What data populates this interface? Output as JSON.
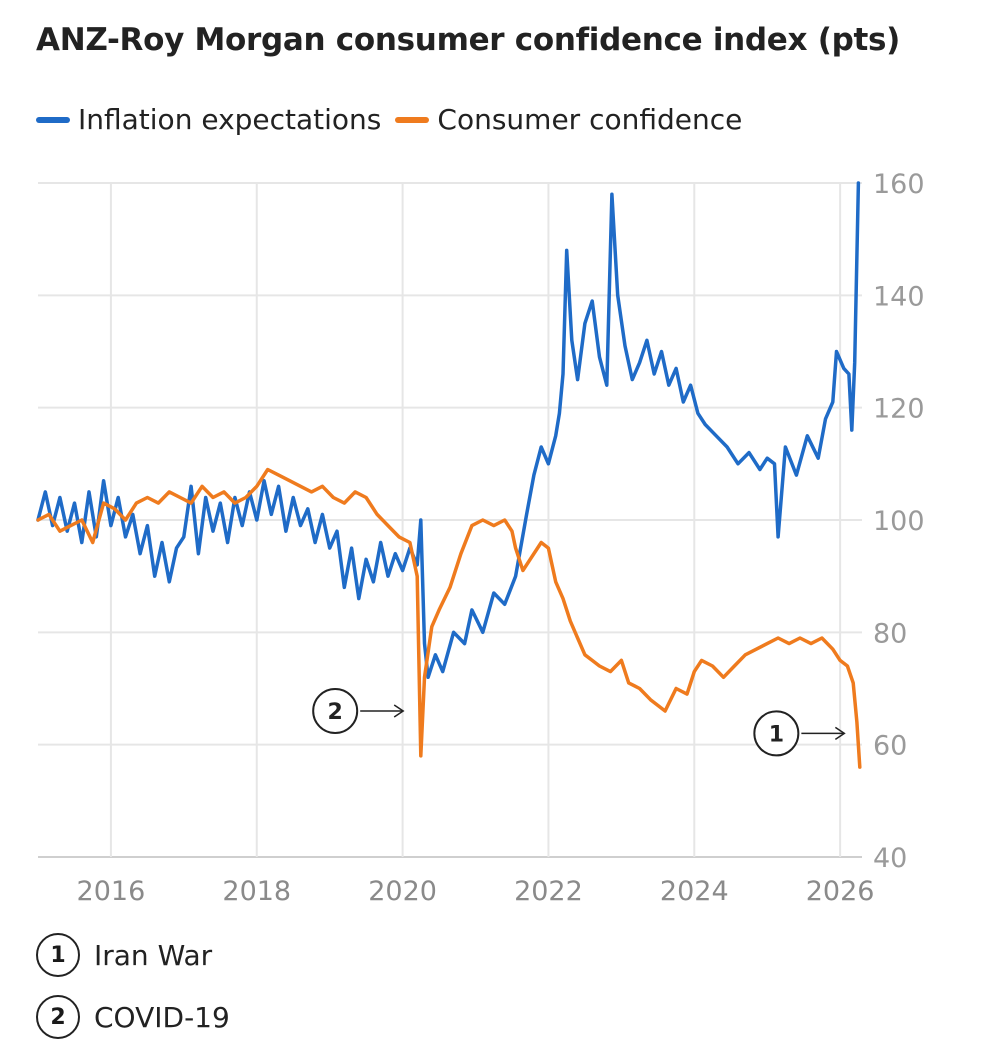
{
  "chart_data": {
    "type": "line",
    "title": "ANZ-Roy Morgan consumer confidence index (pts)",
    "xlabel": "",
    "ylabel": "pts",
    "xlim": [
      2015.0,
      2026.3
    ],
    "ylim": [
      40,
      160
    ],
    "xticks": [
      2016,
      2018,
      2020,
      2022,
      2024,
      2026
    ],
    "yticks": [
      40,
      60,
      80,
      100,
      120,
      140,
      160
    ],
    "legend_position": "top-left",
    "series": [
      {
        "name": "Inflation expectations",
        "color": "#1f6bc7",
        "points": [
          [
            2015.0,
            100
          ],
          [
            2015.1,
            105
          ],
          [
            2015.2,
            99
          ],
          [
            2015.3,
            104
          ],
          [
            2015.4,
            98
          ],
          [
            2015.5,
            103
          ],
          [
            2015.6,
            96
          ],
          [
            2015.7,
            105
          ],
          [
            2015.8,
            97
          ],
          [
            2015.9,
            107
          ],
          [
            2016.0,
            99
          ],
          [
            2016.1,
            104
          ],
          [
            2016.2,
            97
          ],
          [
            2016.3,
            101
          ],
          [
            2016.4,
            94
          ],
          [
            2016.5,
            99
          ],
          [
            2016.6,
            90
          ],
          [
            2016.7,
            96
          ],
          [
            2016.8,
            89
          ],
          [
            2016.9,
            95
          ],
          [
            2017.0,
            97
          ],
          [
            2017.1,
            106
          ],
          [
            2017.2,
            94
          ],
          [
            2017.3,
            104
          ],
          [
            2017.4,
            98
          ],
          [
            2017.5,
            103
          ],
          [
            2017.6,
            96
          ],
          [
            2017.7,
            104
          ],
          [
            2017.8,
            99
          ],
          [
            2017.9,
            105
          ],
          [
            2018.0,
            100
          ],
          [
            2018.1,
            107
          ],
          [
            2018.2,
            101
          ],
          [
            2018.3,
            106
          ],
          [
            2018.4,
            98
          ],
          [
            2018.5,
            104
          ],
          [
            2018.6,
            99
          ],
          [
            2018.7,
            102
          ],
          [
            2018.8,
            96
          ],
          [
            2018.9,
            101
          ],
          [
            2019.0,
            95
          ],
          [
            2019.1,
            98
          ],
          [
            2019.2,
            88
          ],
          [
            2019.3,
            95
          ],
          [
            2019.4,
            86
          ],
          [
            2019.5,
            93
          ],
          [
            2019.6,
            89
          ],
          [
            2019.7,
            96
          ],
          [
            2019.8,
            90
          ],
          [
            2019.9,
            94
          ],
          [
            2020.0,
            91
          ],
          [
            2020.1,
            95
          ],
          [
            2020.2,
            92
          ],
          [
            2020.25,
            100
          ],
          [
            2020.3,
            78
          ],
          [
            2020.35,
            72
          ],
          [
            2020.45,
            76
          ],
          [
            2020.55,
            73
          ],
          [
            2020.7,
            80
          ],
          [
            2020.85,
            78
          ],
          [
            2020.95,
            84
          ],
          [
            2021.1,
            80
          ],
          [
            2021.25,
            87
          ],
          [
            2021.4,
            85
          ],
          [
            2021.55,
            90
          ],
          [
            2021.7,
            101
          ],
          [
            2021.8,
            108
          ],
          [
            2021.9,
            113
          ],
          [
            2022.0,
            110
          ],
          [
            2022.1,
            115
          ],
          [
            2022.15,
            119
          ],
          [
            2022.2,
            126
          ],
          [
            2022.25,
            148
          ],
          [
            2022.32,
            132
          ],
          [
            2022.4,
            125
          ],
          [
            2022.5,
            135
          ],
          [
            2022.6,
            139
          ],
          [
            2022.7,
            129
          ],
          [
            2022.8,
            124
          ],
          [
            2022.87,
            158
          ],
          [
            2022.95,
            140
          ],
          [
            2023.05,
            131
          ],
          [
            2023.15,
            125
          ],
          [
            2023.25,
            128
          ],
          [
            2023.35,
            132
          ],
          [
            2023.45,
            126
          ],
          [
            2023.55,
            130
          ],
          [
            2023.65,
            124
          ],
          [
            2023.75,
            127
          ],
          [
            2023.85,
            121
          ],
          [
            2023.95,
            124
          ],
          [
            2024.05,
            119
          ],
          [
            2024.15,
            117
          ],
          [
            2024.3,
            115
          ],
          [
            2024.45,
            113
          ],
          [
            2024.6,
            110
          ],
          [
            2024.75,
            112
          ],
          [
            2024.9,
            109
          ],
          [
            2025.0,
            111
          ],
          [
            2025.1,
            110
          ],
          [
            2025.15,
            97
          ],
          [
            2025.25,
            113
          ],
          [
            2025.4,
            108
          ],
          [
            2025.55,
            115
          ],
          [
            2025.7,
            111
          ],
          [
            2025.8,
            118
          ],
          [
            2025.9,
            121
          ],
          [
            2025.95,
            130
          ],
          [
            2026.05,
            127
          ],
          [
            2026.12,
            126
          ],
          [
            2026.16,
            116
          ],
          [
            2026.2,
            128
          ],
          [
            2026.25,
            160
          ]
        ]
      },
      {
        "name": "Consumer confidence",
        "color": "#ef7b1e",
        "points": [
          [
            2015.0,
            100
          ],
          [
            2015.15,
            101
          ],
          [
            2015.3,
            98
          ],
          [
            2015.45,
            99
          ],
          [
            2015.6,
            100
          ],
          [
            2015.75,
            96
          ],
          [
            2015.9,
            103
          ],
          [
            2016.05,
            102
          ],
          [
            2016.2,
            100
          ],
          [
            2016.35,
            103
          ],
          [
            2016.5,
            104
          ],
          [
            2016.65,
            103
          ],
          [
            2016.8,
            105
          ],
          [
            2016.95,
            104
          ],
          [
            2017.1,
            103
          ],
          [
            2017.25,
            106
          ],
          [
            2017.4,
            104
          ],
          [
            2017.55,
            105
          ],
          [
            2017.7,
            103
          ],
          [
            2017.85,
            104
          ],
          [
            2018.0,
            106
          ],
          [
            2018.15,
            109
          ],
          [
            2018.3,
            108
          ],
          [
            2018.45,
            107
          ],
          [
            2018.6,
            106
          ],
          [
            2018.75,
            105
          ],
          [
            2018.9,
            106
          ],
          [
            2019.05,
            104
          ],
          [
            2019.2,
            103
          ],
          [
            2019.35,
            105
          ],
          [
            2019.5,
            104
          ],
          [
            2019.65,
            101
          ],
          [
            2019.8,
            99
          ],
          [
            2019.95,
            97
          ],
          [
            2020.1,
            96
          ],
          [
            2020.2,
            90
          ],
          [
            2020.25,
            58
          ],
          [
            2020.3,
            72
          ],
          [
            2020.4,
            81
          ],
          [
            2020.5,
            84
          ],
          [
            2020.65,
            88
          ],
          [
            2020.8,
            94
          ],
          [
            2020.95,
            99
          ],
          [
            2021.1,
            100
          ],
          [
            2021.25,
            99
          ],
          [
            2021.4,
            100
          ],
          [
            2021.5,
            98
          ],
          [
            2021.55,
            95
          ],
          [
            2021.65,
            91
          ],
          [
            2021.75,
            93
          ],
          [
            2021.9,
            96
          ],
          [
            2022.0,
            95
          ],
          [
            2022.1,
            89
          ],
          [
            2022.2,
            86
          ],
          [
            2022.3,
            82
          ],
          [
            2022.4,
            79
          ],
          [
            2022.5,
            76
          ],
          [
            2022.6,
            75
          ],
          [
            2022.7,
            74
          ],
          [
            2022.85,
            73
          ],
          [
            2023.0,
            75
          ],
          [
            2023.1,
            71
          ],
          [
            2023.25,
            70
          ],
          [
            2023.4,
            68
          ],
          [
            2023.5,
            67
          ],
          [
            2023.6,
            66
          ],
          [
            2023.75,
            70
          ],
          [
            2023.9,
            69
          ],
          [
            2024.0,
            73
          ],
          [
            2024.1,
            75
          ],
          [
            2024.25,
            74
          ],
          [
            2024.4,
            72
          ],
          [
            2024.55,
            74
          ],
          [
            2024.7,
            76
          ],
          [
            2024.85,
            77
          ],
          [
            2025.0,
            78
          ],
          [
            2025.15,
            79
          ],
          [
            2025.3,
            78
          ],
          [
            2025.45,
            79
          ],
          [
            2025.6,
            78
          ],
          [
            2025.75,
            79
          ],
          [
            2025.9,
            77
          ],
          [
            2026.0,
            75
          ],
          [
            2026.1,
            74
          ],
          [
            2026.18,
            71
          ],
          [
            2026.23,
            64
          ],
          [
            2026.27,
            56
          ]
        ]
      }
    ],
    "annotations": [
      {
        "number": "1",
        "label": "Iran War",
        "x": 2026.25,
        "y": 62,
        "side": "left"
      },
      {
        "number": "2",
        "label": "COVID-19",
        "x": 2020.2,
        "y": 66,
        "side": "left"
      }
    ]
  }
}
